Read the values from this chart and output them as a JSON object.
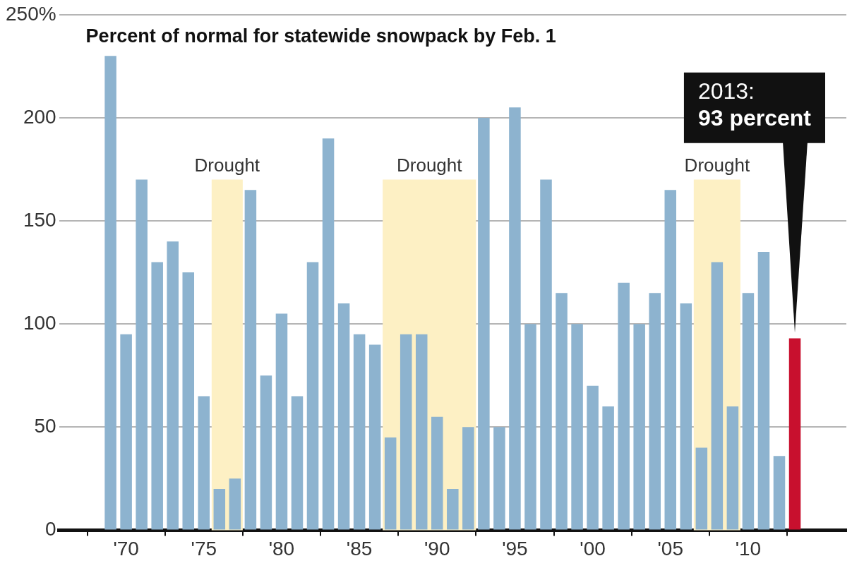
{
  "chart_data": {
    "type": "bar",
    "title": "Percent of normal for statewide snowpack by Feb. 1",
    "x": [
      1969,
      1970,
      1971,
      1972,
      1973,
      1974,
      1975,
      1976,
      1977,
      1978,
      1979,
      1980,
      1981,
      1982,
      1983,
      1984,
      1985,
      1986,
      1987,
      1988,
      1989,
      1990,
      1991,
      1992,
      1993,
      1994,
      1995,
      1996,
      1997,
      1998,
      1999,
      2000,
      2001,
      2002,
      2003,
      2004,
      2005,
      2006,
      2007,
      2008,
      2009,
      2010,
      2011,
      2012,
      2013
    ],
    "values": [
      230,
      95,
      170,
      130,
      140,
      125,
      65,
      20,
      25,
      165,
      75,
      105,
      65,
      130,
      190,
      110,
      95,
      90,
      45,
      95,
      95,
      55,
      20,
      50,
      200,
      50,
      205,
      100,
      170,
      115,
      100,
      70,
      60,
      120,
      100,
      115,
      165,
      110,
      40,
      130,
      60,
      115,
      135,
      36,
      93
    ],
    "colors": [
      "#8db3cf",
      "#8db3cf",
      "#8db3cf",
      "#8db3cf",
      "#8db3cf",
      "#8db3cf",
      "#8db3cf",
      "#8db3cf",
      "#8db3cf",
      "#8db3cf",
      "#8db3cf",
      "#8db3cf",
      "#8db3cf",
      "#8db3cf",
      "#8db3cf",
      "#8db3cf",
      "#8db3cf",
      "#8db3cf",
      "#8db3cf",
      "#8db3cf",
      "#8db3cf",
      "#8db3cf",
      "#8db3cf",
      "#8db3cf",
      "#8db3cf",
      "#8db3cf",
      "#8db3cf",
      "#8db3cf",
      "#8db3cf",
      "#8db3cf",
      "#8db3cf",
      "#8db3cf",
      "#8db3cf",
      "#8db3cf",
      "#8db3cf",
      "#8db3cf",
      "#8db3cf",
      "#8db3cf",
      "#8db3cf",
      "#8db3cf",
      "#8db3cf",
      "#8db3cf",
      "#8db3cf",
      "#8db3cf",
      "#c8102e"
    ],
    "xlim": [
      1968.5,
      2013.5
    ],
    "xticks": [
      {
        "value": 1970,
        "label": "'70"
      },
      {
        "value": 1975,
        "label": "'75"
      },
      {
        "value": 1980,
        "label": "'80"
      },
      {
        "value": 1985,
        "label": "'85"
      },
      {
        "value": 1990,
        "label": "'90"
      },
      {
        "value": 1995,
        "label": "'95"
      },
      {
        "value": 2000,
        "label": "'00"
      },
      {
        "value": 2005,
        "label": "'05"
      },
      {
        "value": 2010,
        "label": "'10"
      }
    ],
    "ylim": [
      0,
      250
    ],
    "yticks": [
      0,
      50,
      100,
      150,
      200,
      {
        "value": 250,
        "label": "250%"
      }
    ],
    "grid": "y",
    "bands": [
      {
        "axis": "x",
        "from": 1975.5,
        "to": 1977.5,
        "label": "Drought",
        "color": "#fdf0c4"
      },
      {
        "axis": "x",
        "from": 1986.5,
        "to": 1992.5,
        "label": "Drought",
        "color": "#fdf0c4"
      },
      {
        "axis": "x",
        "from": 2006.5,
        "to": 2009.5,
        "label": "Drought",
        "color": "#fdf0c4"
      }
    ],
    "annotations": [
      {
        "text": "2013:\n93 percent",
        "x": 2013,
        "y": 93
      }
    ]
  }
}
